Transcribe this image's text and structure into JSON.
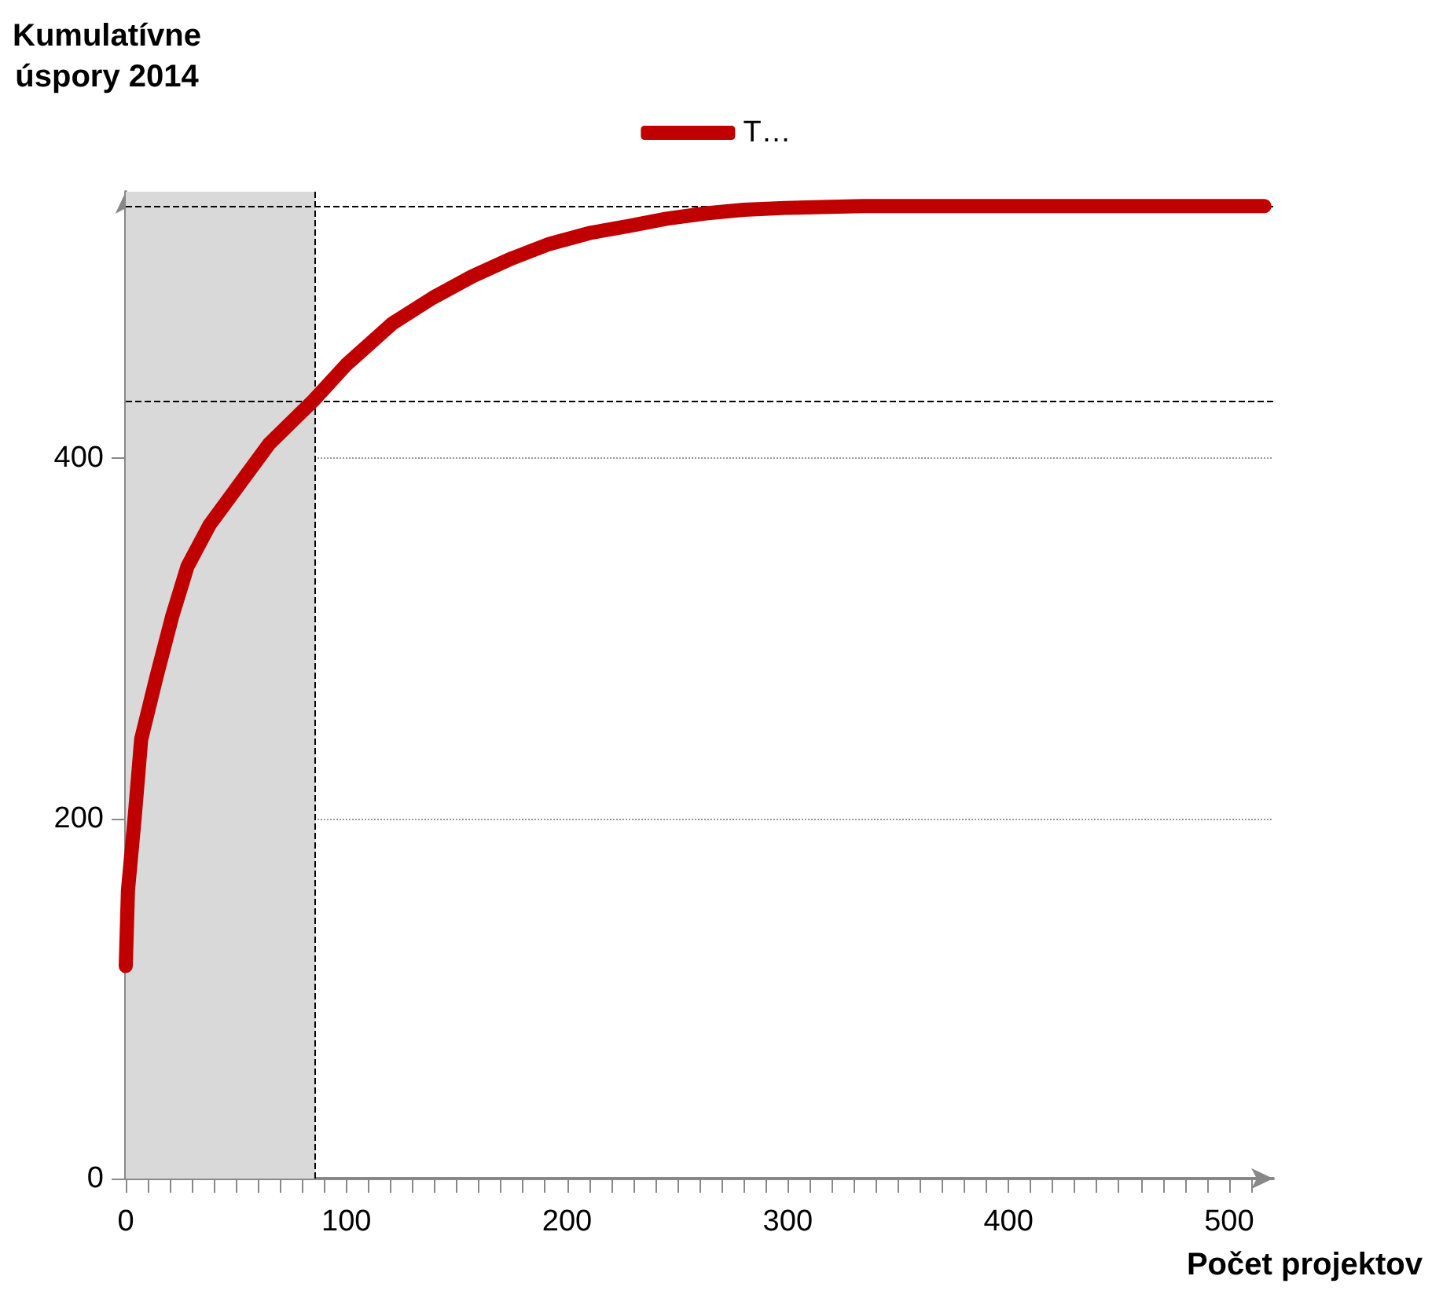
{
  "chart_data": {
    "type": "line",
    "ylabel": "Kumulatívne\núspory 2014",
    "xlabel": "Počet projektov",
    "xlim": [
      0,
      520
    ],
    "ylim": [
      0,
      548
    ],
    "xticks": [
      0,
      {
        "value": 10,
        "label": null
      },
      {
        "value": 20,
        "label": null
      },
      {
        "value": 30,
        "label": null
      },
      {
        "value": 40,
        "label": null
      },
      {
        "value": 50,
        "label": null
      },
      {
        "value": 60,
        "label": null
      },
      {
        "value": 70,
        "label": null
      },
      {
        "value": 80,
        "label": null
      },
      {
        "value": 90,
        "label": null
      },
      100,
      {
        "value": 110,
        "label": null
      },
      {
        "value": 120,
        "label": null
      },
      {
        "value": 130,
        "label": null
      },
      {
        "value": 140,
        "label": null
      },
      {
        "value": 150,
        "label": null
      },
      {
        "value": 160,
        "label": null
      },
      {
        "value": 170,
        "label": null
      },
      {
        "value": 180,
        "label": null
      },
      {
        "value": 190,
        "label": null
      },
      200,
      {
        "value": 210,
        "label": null
      },
      {
        "value": 220,
        "label": null
      },
      {
        "value": 230,
        "label": null
      },
      {
        "value": 240,
        "label": null
      },
      {
        "value": 250,
        "label": null
      },
      {
        "value": 260,
        "label": null
      },
      {
        "value": 270,
        "label": null
      },
      {
        "value": 280,
        "label": null
      },
      {
        "value": 290,
        "label": null
      },
      300,
      {
        "value": 310,
        "label": null
      },
      {
        "value": 320,
        "label": null
      },
      {
        "value": 330,
        "label": null
      },
      {
        "value": 340,
        "label": null
      },
      {
        "value": 350,
        "label": null
      },
      {
        "value": 360,
        "label": null
      },
      {
        "value": 370,
        "label": null
      },
      {
        "value": 380,
        "label": null
      },
      {
        "value": 390,
        "label": null
      },
      400,
      {
        "value": 410,
        "label": null
      },
      {
        "value": 420,
        "label": null
      },
      {
        "value": 430,
        "label": null
      },
      {
        "value": 440,
        "label": null
      },
      {
        "value": 450,
        "label": null
      },
      {
        "value": 460,
        "label": null
      },
      {
        "value": 470,
        "label": null
      },
      {
        "value": 480,
        "label": null
      },
      {
        "value": 490,
        "label": null
      },
      500,
      {
        "value": 510,
        "label": null
      }
    ],
    "yticks": [
      0,
      200,
      400
    ],
    "grid": "y",
    "legend": "top",
    "line_style": "solid",
    "series": [
      {
        "name": "T…",
        "color": "#c00000",
        "x": [
          0,
          1,
          4,
          7,
          14,
          21,
          28,
          38,
          50,
          65,
          85,
          100,
          121,
          139,
          157,
          175,
          192,
          210,
          228,
          245,
          263,
          280,
          299,
          334,
          516
        ],
        "values": [
          118,
          160,
          200,
          244,
          279,
          312,
          340,
          363,
          383,
          408,
          432,
          452,
          475,
          489,
          501,
          511,
          519,
          525,
          529,
          533,
          536,
          538,
          539,
          540,
          540
        ]
      }
    ],
    "bands": [
      {
        "axis": "x",
        "from": 0,
        "to": 86,
        "color": "#d9d9d9"
      }
    ],
    "ref_lines": [
      {
        "axis": "x",
        "value": 86,
        "line_style": "dashed",
        "color": "#000000"
      },
      {
        "axis": "y",
        "value": 432,
        "line_style": "dashed",
        "color": "#000000"
      },
      {
        "axis": "y",
        "value": 540,
        "line_style": "dashed",
        "color": "#000000"
      }
    ]
  }
}
